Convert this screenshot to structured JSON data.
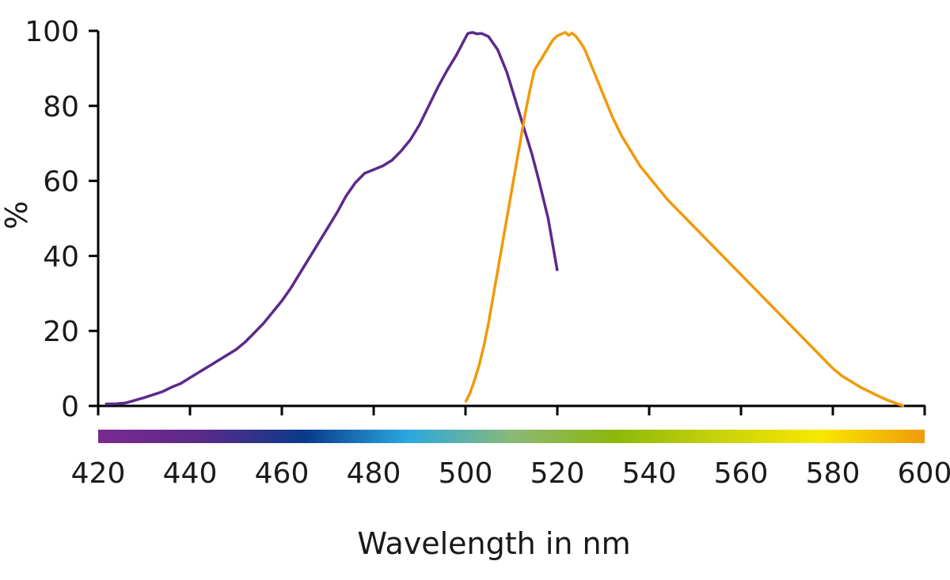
{
  "chart_data": {
    "type": "line",
    "title": "",
    "xlabel": "Wavelength in nm",
    "ylabel": "%",
    "xlim": [
      420,
      600
    ],
    "ylim": [
      0,
      100
    ],
    "x_ticks": [
      "420",
      "440",
      "460",
      "480",
      "500",
      "520",
      "540",
      "560",
      "580",
      "600"
    ],
    "y_ticks": [
      "0",
      "20",
      "40",
      "60",
      "80",
      "100"
    ],
    "grid": false,
    "legend": "none",
    "color_bar": [
      "#7b2a8f",
      "#5a2a8a",
      "#0a3a8a",
      "#2aa8e0",
      "#8ab878",
      "#8cb80a",
      "#c8d20a",
      "#f8e800",
      "#f09a0a"
    ],
    "series": [
      {
        "color": "#5b2a8c",
        "points": [
          [
            421.5,
            0.5
          ],
          [
            424,
            0.6
          ],
          [
            426,
            0.8
          ],
          [
            428,
            1.5
          ],
          [
            430,
            2.2
          ],
          [
            432,
            3
          ],
          [
            434,
            3.8
          ],
          [
            436,
            5
          ],
          [
            438,
            6
          ],
          [
            440,
            7.5
          ],
          [
            442,
            9
          ],
          [
            444,
            10.5
          ],
          [
            446,
            12
          ],
          [
            448,
            13.5
          ],
          [
            450,
            15
          ],
          [
            452,
            17
          ],
          [
            454,
            19.5
          ],
          [
            456,
            22
          ],
          [
            458,
            25
          ],
          [
            460,
            28
          ],
          [
            462,
            31.5
          ],
          [
            464,
            35.5
          ],
          [
            466,
            39.5
          ],
          [
            468,
            43.5
          ],
          [
            470,
            47.5
          ],
          [
            472,
            51.5
          ],
          [
            474,
            56
          ],
          [
            476,
            59.5
          ],
          [
            478,
            62
          ],
          [
            480,
            63
          ],
          [
            482,
            64
          ],
          [
            484,
            65.5
          ],
          [
            486,
            68
          ],
          [
            488,
            71
          ],
          [
            490,
            75
          ],
          [
            492,
            80
          ],
          [
            494,
            85
          ],
          [
            496,
            89.5
          ],
          [
            498,
            93.5
          ],
          [
            499.5,
            97
          ],
          [
            500.5,
            99.3
          ],
          [
            501.5,
            99.6
          ],
          [
            502.5,
            99.2
          ],
          [
            503.5,
            99.3
          ],
          [
            505,
            98.5
          ],
          [
            507,
            95
          ],
          [
            509,
            89
          ],
          [
            511,
            81
          ],
          [
            513,
            73
          ],
          [
            514.5,
            67
          ],
          [
            516,
            60
          ],
          [
            518,
            50
          ],
          [
            520,
            36
          ]
        ]
      },
      {
        "color": "#f09a0a",
        "points": [
          [
            500,
            1
          ],
          [
            501,
            3.5
          ],
          [
            502,
            7
          ],
          [
            503,
            11
          ],
          [
            504,
            16
          ],
          [
            505,
            22
          ],
          [
            506,
            29
          ],
          [
            507,
            36
          ],
          [
            508,
            43
          ],
          [
            509,
            50
          ],
          [
            510,
            57
          ],
          [
            511,
            64
          ],
          [
            512,
            71
          ],
          [
            513,
            78
          ],
          [
            514,
            84
          ],
          [
            515,
            89.5
          ],
          [
            516,
            91.5
          ],
          [
            517,
            93.5
          ],
          [
            518,
            95.5
          ],
          [
            519,
            97.5
          ],
          [
            520,
            98.7
          ],
          [
            521,
            99.2
          ],
          [
            521.8,
            99.6
          ],
          [
            522.5,
            98.8
          ],
          [
            523.2,
            99.4
          ],
          [
            524,
            98.6
          ],
          [
            525,
            97
          ],
          [
            526,
            95
          ],
          [
            527,
            92
          ],
          [
            528,
            89
          ],
          [
            530,
            83
          ],
          [
            532,
            77
          ],
          [
            534,
            72
          ],
          [
            536,
            68
          ],
          [
            538,
            64
          ],
          [
            540,
            61
          ],
          [
            542,
            58
          ],
          [
            544,
            55
          ],
          [
            546,
            52.5
          ],
          [
            548,
            50
          ],
          [
            550,
            47.5
          ],
          [
            552,
            45
          ],
          [
            554,
            42.5
          ],
          [
            556,
            40
          ],
          [
            558,
            37.5
          ],
          [
            560,
            35
          ],
          [
            562,
            32.5
          ],
          [
            564,
            30
          ],
          [
            566,
            27.5
          ],
          [
            568,
            25
          ],
          [
            570,
            22.5
          ],
          [
            572,
            20
          ],
          [
            574,
            17.5
          ],
          [
            576,
            15
          ],
          [
            578,
            12.5
          ],
          [
            580,
            10
          ],
          [
            582,
            8
          ],
          [
            584,
            6.5
          ],
          [
            586,
            5
          ],
          [
            588,
            3.8
          ],
          [
            590,
            2.6
          ],
          [
            592,
            1.5
          ],
          [
            594,
            0.6
          ],
          [
            595.5,
            0
          ]
        ]
      }
    ]
  }
}
